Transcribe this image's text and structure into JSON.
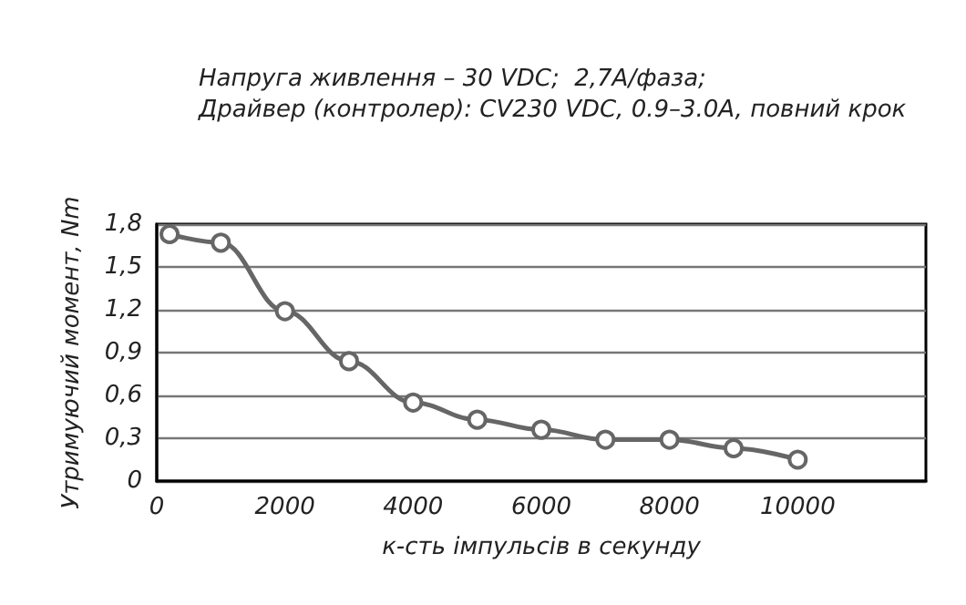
{
  "chart_data": {
    "type": "line",
    "title": "Напруга живлення – 30 VDC;  2,7A/фаза;",
    "subtitle": "Драйвер (контролер): CV230 VDC, 0.9–3.0A, повний крок",
    "xlabel": "к-сть імпульсів в секунду",
    "ylabel": "Утримуючий момент, Nm",
    "x": [
      200,
      1000,
      2000,
      3000,
      4000,
      5000,
      6000,
      7000,
      8000,
      9000,
      10000
    ],
    "series": [
      {
        "color": "#666666",
        "values": [
          1.73,
          1.67,
          1.19,
          0.84,
          0.55,
          0.43,
          0.36,
          0.29,
          0.29,
          0.23,
          0.15
        ]
      }
    ],
    "xlim": [
      0,
      12000
    ],
    "xticks": [
      0,
      2000,
      4000,
      6000,
      8000,
      10000
    ],
    "ylim": [
      0,
      1.8
    ],
    "yticks": [
      {
        "value": 0,
        "label": "0"
      },
      {
        "value": 0.3,
        "label": "0,3"
      },
      {
        "value": 0.6,
        "label": "0,6"
      },
      {
        "value": 0.9,
        "label": "0,9"
      },
      {
        "value": 1.2,
        "label": "1,2"
      },
      {
        "value": 1.5,
        "label": "1,5"
      },
      {
        "value": 1.8,
        "label": "1,8"
      }
    ],
    "grid": "y",
    "marker": "circle",
    "line_style": "solid"
  }
}
